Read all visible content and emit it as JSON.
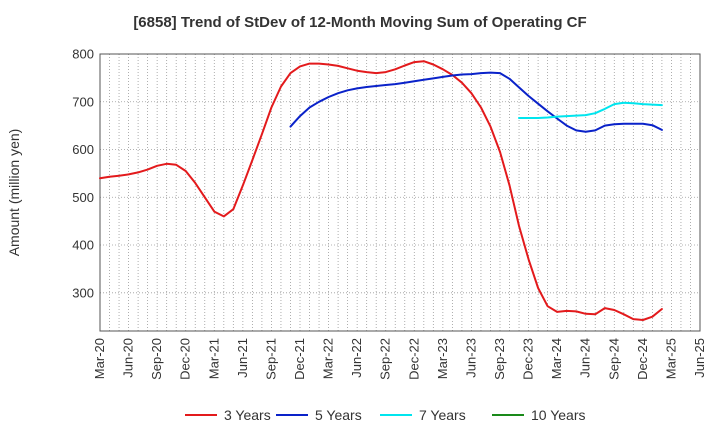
{
  "chart_data": {
    "type": "line",
    "title": "[6858]  Trend of StDev of 12-Month Moving Sum of Operating CF",
    "xlabel": "",
    "ylabel": "Amount (million yen)",
    "ylim": [
      220,
      800
    ],
    "yticks": [
      300,
      400,
      500,
      600,
      700,
      800
    ],
    "xlim": [
      "2020-03",
      "2025-06"
    ],
    "xticks": [
      "Mar-20",
      "Jun-20",
      "Sep-20",
      "Dec-20",
      "Mar-21",
      "Jun-21",
      "Sep-21",
      "Dec-21",
      "Mar-22",
      "Jun-22",
      "Sep-22",
      "Dec-22",
      "Mar-23",
      "Jun-23",
      "Sep-23",
      "Dec-23",
      "Mar-24",
      "Jun-24",
      "Sep-24",
      "Dec-24",
      "Mar-25",
      "Jun-25"
    ],
    "grid": true,
    "legend_position": "bottom",
    "series": [
      {
        "name": "3 Years",
        "color": "#e31a1c",
        "points": [
          [
            "2020-03",
            540
          ],
          [
            "2020-04",
            543
          ],
          [
            "2020-05",
            545
          ],
          [
            "2020-06",
            548
          ],
          [
            "2020-07",
            552
          ],
          [
            "2020-08",
            558
          ],
          [
            "2020-09",
            566
          ],
          [
            "2020-10",
            570
          ],
          [
            "2020-11",
            568
          ],
          [
            "2020-12",
            555
          ],
          [
            "2021-01",
            530
          ],
          [
            "2021-02",
            500
          ],
          [
            "2021-03",
            470
          ],
          [
            "2021-04",
            460
          ],
          [
            "2021-05",
            475
          ],
          [
            "2021-06",
            525
          ],
          [
            "2021-07",
            578
          ],
          [
            "2021-08",
            632
          ],
          [
            "2021-09",
            688
          ],
          [
            "2021-10",
            732
          ],
          [
            "2021-11",
            760
          ],
          [
            "2021-12",
            774
          ],
          [
            "2022-01",
            780
          ],
          [
            "2022-02",
            780
          ],
          [
            "2022-03",
            778
          ],
          [
            "2022-04",
            775
          ],
          [
            "2022-05",
            770
          ],
          [
            "2022-06",
            765
          ],
          [
            "2022-07",
            762
          ],
          [
            "2022-08",
            760
          ],
          [
            "2022-09",
            762
          ],
          [
            "2022-10",
            768
          ],
          [
            "2022-11",
            776
          ],
          [
            "2022-12",
            783
          ],
          [
            "2023-01",
            785
          ],
          [
            "2023-02",
            778
          ],
          [
            "2023-03",
            768
          ],
          [
            "2023-04",
            756
          ],
          [
            "2023-05",
            740
          ],
          [
            "2023-06",
            718
          ],
          [
            "2023-07",
            688
          ],
          [
            "2023-08",
            648
          ],
          [
            "2023-09",
            595
          ],
          [
            "2023-10",
            525
          ],
          [
            "2023-11",
            440
          ],
          [
            "2023-12",
            370
          ],
          [
            "2024-01",
            310
          ],
          [
            "2024-02",
            272
          ],
          [
            "2024-03",
            260
          ],
          [
            "2024-04",
            262
          ],
          [
            "2024-05",
            261
          ],
          [
            "2024-06",
            256
          ],
          [
            "2024-07",
            255
          ],
          [
            "2024-08",
            268
          ],
          [
            "2024-09",
            264
          ],
          [
            "2024-10",
            255
          ],
          [
            "2024-11",
            245
          ],
          [
            "2024-12",
            243
          ],
          [
            "2025-01",
            250
          ],
          [
            "2025-02",
            266
          ]
        ]
      },
      {
        "name": "5 Years",
        "color": "#0a22c9",
        "points": [
          [
            "2021-11",
            648
          ],
          [
            "2021-12",
            670
          ],
          [
            "2022-01",
            688
          ],
          [
            "2022-02",
            700
          ],
          [
            "2022-03",
            710
          ],
          [
            "2022-04",
            718
          ],
          [
            "2022-05",
            724
          ],
          [
            "2022-06",
            728
          ],
          [
            "2022-07",
            731
          ],
          [
            "2022-08",
            733
          ],
          [
            "2022-09",
            735
          ],
          [
            "2022-10",
            737
          ],
          [
            "2022-11",
            740
          ],
          [
            "2022-12",
            743
          ],
          [
            "2023-01",
            746
          ],
          [
            "2023-02",
            749
          ],
          [
            "2023-03",
            752
          ],
          [
            "2023-04",
            755
          ],
          [
            "2023-05",
            757
          ],
          [
            "2023-06",
            758
          ],
          [
            "2023-07",
            760
          ],
          [
            "2023-08",
            761
          ],
          [
            "2023-09",
            760
          ],
          [
            "2023-10",
            748
          ],
          [
            "2023-11",
            730
          ],
          [
            "2023-12",
            712
          ],
          [
            "2024-01",
            696
          ],
          [
            "2024-02",
            680
          ],
          [
            "2024-03",
            665
          ],
          [
            "2024-04",
            650
          ],
          [
            "2024-05",
            640
          ],
          [
            "2024-06",
            637
          ],
          [
            "2024-07",
            640
          ],
          [
            "2024-08",
            650
          ],
          [
            "2024-09",
            653
          ],
          [
            "2024-10",
            654
          ],
          [
            "2024-11",
            654
          ],
          [
            "2024-12",
            654
          ],
          [
            "2025-01",
            651
          ],
          [
            "2025-02",
            641
          ]
        ]
      },
      {
        "name": "7 Years",
        "color": "#00e5ee",
        "points": [
          [
            "2023-11",
            666
          ],
          [
            "2023-12",
            666
          ],
          [
            "2024-01",
            666
          ],
          [
            "2024-02",
            667
          ],
          [
            "2024-03",
            669
          ],
          [
            "2024-04",
            670
          ],
          [
            "2024-05",
            671
          ],
          [
            "2024-06",
            672
          ],
          [
            "2024-07",
            676
          ],
          [
            "2024-08",
            685
          ],
          [
            "2024-09",
            695
          ],
          [
            "2024-10",
            698
          ],
          [
            "2024-11",
            697
          ],
          [
            "2024-12",
            695
          ],
          [
            "2025-01",
            694
          ],
          [
            "2025-02",
            693
          ]
        ]
      },
      {
        "name": "10 Years",
        "color": "#1a8a1a",
        "points": []
      }
    ]
  }
}
